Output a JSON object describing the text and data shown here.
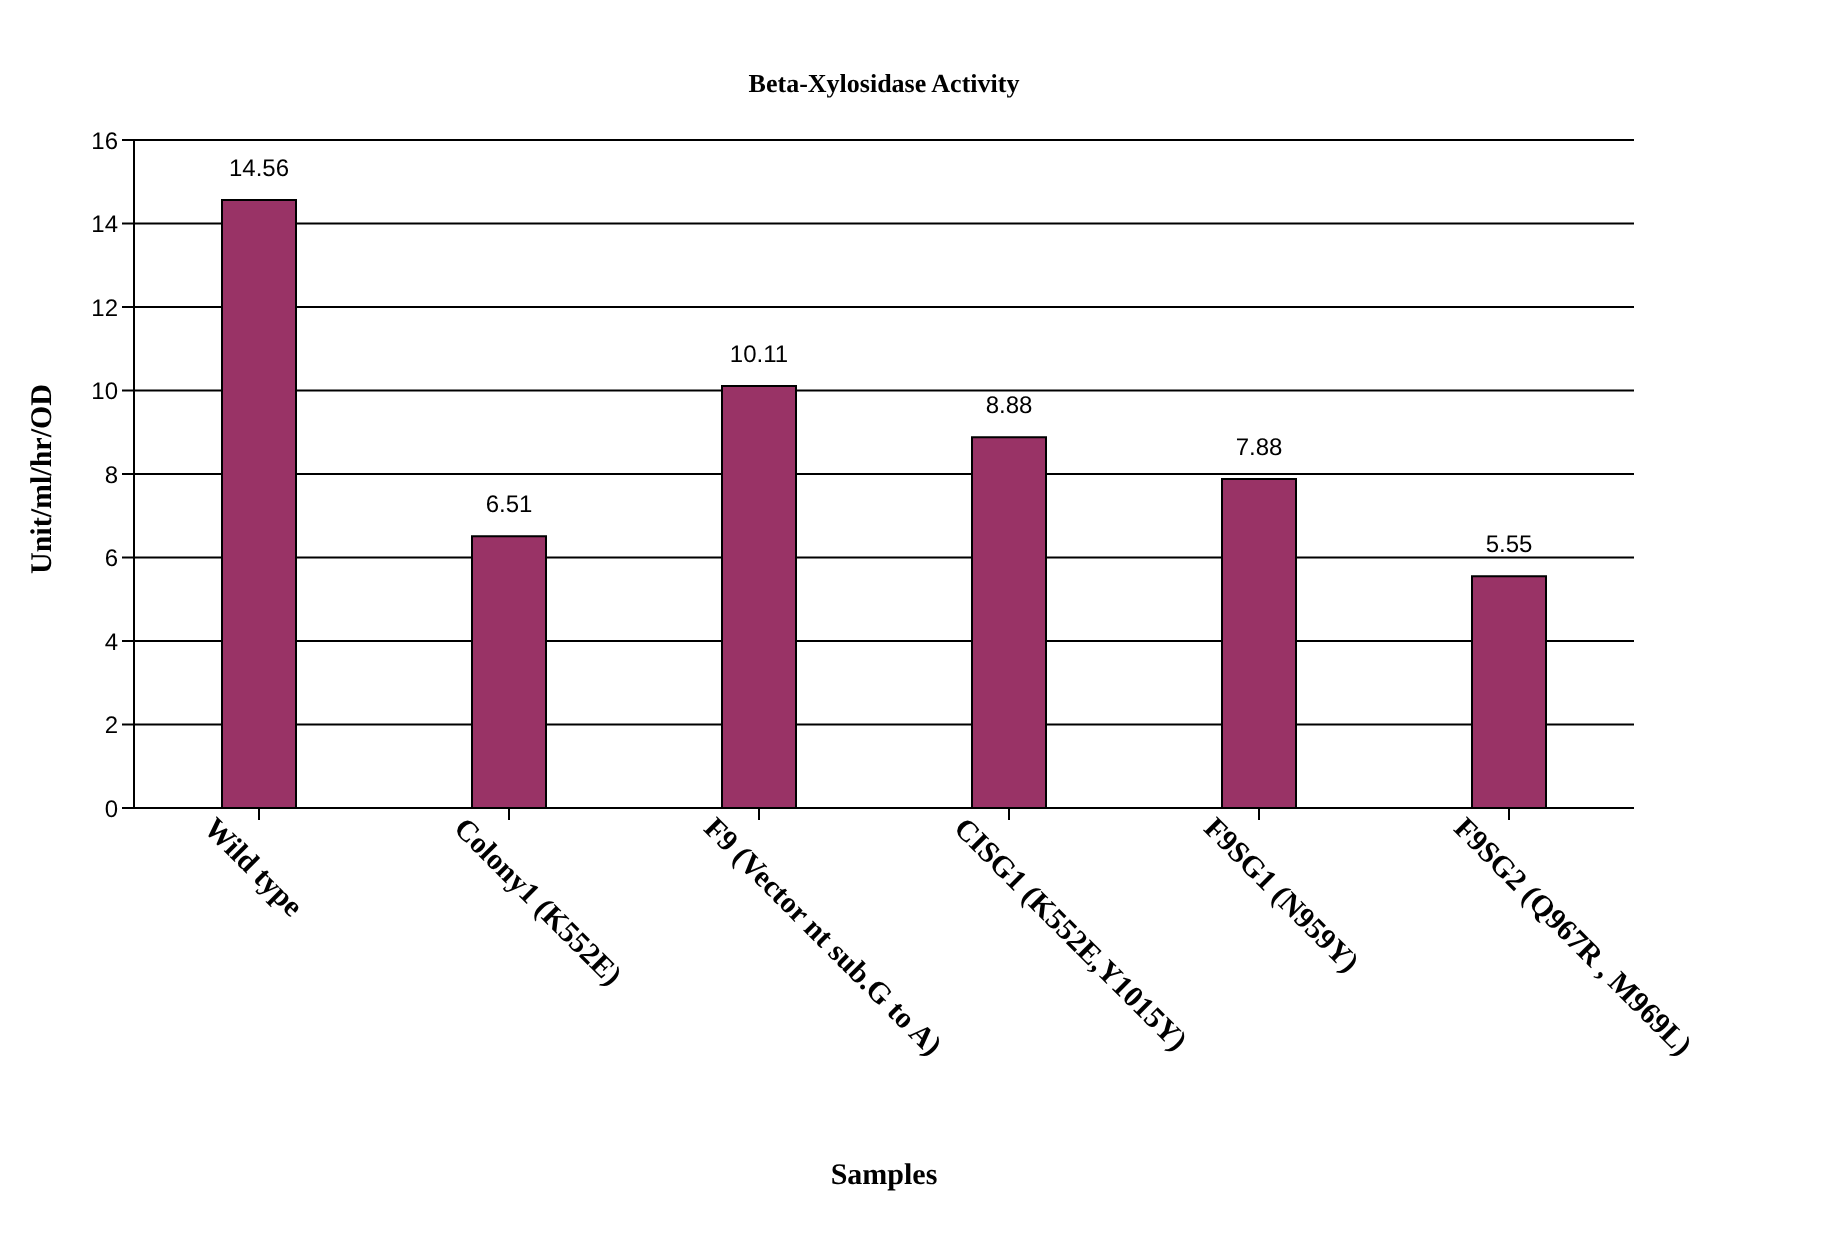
{
  "chart_data": {
    "type": "bar",
    "title": "Beta-Xylosidase Activity",
    "xlabel": "Samples",
    "ylabel": "Unit/ml/hr/OD",
    "categories": [
      "Wild type",
      "Colony1 (K552E)",
      "F9 (Vector nt sub.G to A)",
      "CISG1 (K552E,Y1015Y)",
      "F9SG1 (N959Y)",
      "F9SG2 (Q967R , M969L)"
    ],
    "values": [
      14.56,
      6.51,
      10.11,
      8.88,
      7.88,
      5.55
    ],
    "color": "#993366",
    "data_labels": true,
    "ylim": [
      0,
      16
    ],
    "yticks": [
      0,
      2,
      4,
      6,
      8,
      10,
      12,
      14,
      16
    ],
    "grid": "y"
  }
}
